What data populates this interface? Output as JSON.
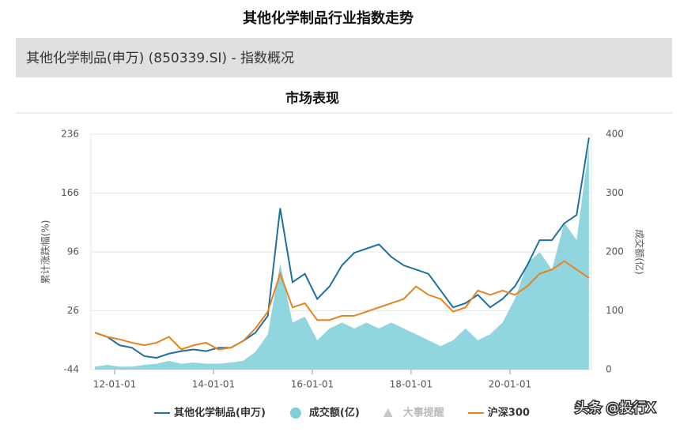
{
  "page_title": "其他化学制品行业指数走势",
  "panel_title": "其他化学制品(申万) (850339.SI) - 指数概况",
  "section_title": "市场表现",
  "watermark": "头条 @投行X",
  "chart_data": {
    "type": "line",
    "ylabel": "累计涨跌幅(%)",
    "y2label": "成交额(亿)",
    "xlim": [
      2011.52,
      2021.65
    ],
    "xticks": [
      {
        "value": 2012,
        "label": "12-01-01"
      },
      {
        "value": 2014,
        "label": "14-01-01"
      },
      {
        "value": 2016,
        "label": "16-01-01"
      },
      {
        "value": 2018,
        "label": "18-01-01"
      },
      {
        "value": 2020,
        "label": "20-01-01"
      }
    ],
    "ylim": [
      -44,
      236
    ],
    "yticks": [
      -44,
      26,
      96,
      166,
      236
    ],
    "y2lim": [
      0,
      400
    ],
    "y2ticks": [
      0,
      100,
      200,
      300,
      400
    ],
    "grid": true,
    "x": [
      2011.6,
      2011.85,
      2012.1,
      2012.35,
      2012.6,
      2012.85,
      2013.1,
      2013.35,
      2013.6,
      2013.85,
      2014.1,
      2014.35,
      2014.6,
      2014.85,
      2015.1,
      2015.35,
      2015.6,
      2015.85,
      2016.1,
      2016.35,
      2016.6,
      2016.85,
      2017.1,
      2017.35,
      2017.6,
      2017.85,
      2018.1,
      2018.35,
      2018.6,
      2018.85,
      2019.1,
      2019.35,
      2019.6,
      2019.85,
      2020.1,
      2020.35,
      2020.6,
      2020.85,
      2021.1,
      2021.35,
      2021.6
    ],
    "series": [
      {
        "name": "其他化学制品(申万)",
        "color": "#1f6fa3",
        "axis": "y",
        "kind": "line",
        "values": [
          0,
          -5,
          -15,
          -18,
          -28,
          -30,
          -25,
          -22,
          -20,
          -22,
          -18,
          -18,
          -10,
          0,
          20,
          148,
          60,
          70,
          40,
          55,
          80,
          95,
          100,
          105,
          90,
          80,
          75,
          70,
          50,
          30,
          35,
          45,
          30,
          40,
          55,
          80,
          110,
          110,
          130,
          140,
          232
        ]
      },
      {
        "name": "成交额(亿)",
        "color": "#7ecfd8",
        "axis": "y2",
        "kind": "area",
        "values": [
          5,
          8,
          5,
          5,
          8,
          10,
          15,
          10,
          12,
          10,
          10,
          12,
          15,
          30,
          60,
          180,
          80,
          90,
          50,
          70,
          80,
          70,
          80,
          70,
          80,
          70,
          60,
          50,
          40,
          50,
          70,
          50,
          60,
          80,
          120,
          180,
          200,
          170,
          250,
          220,
          380
        ]
      },
      {
        "name": "沪深300",
        "color": "#e8821e",
        "axis": "y",
        "kind": "line",
        "values": [
          0,
          -5,
          -8,
          -12,
          -15,
          -12,
          -5,
          -20,
          -15,
          -12,
          -20,
          -18,
          -10,
          5,
          25,
          70,
          30,
          35,
          15,
          15,
          20,
          20,
          25,
          30,
          35,
          40,
          55,
          45,
          40,
          25,
          30,
          50,
          45,
          50,
          45,
          55,
          70,
          75,
          85,
          75,
          65
        ]
      }
    ],
    "legend_extra": {
      "name": "大事提醒",
      "color": "#c8c8c8"
    }
  }
}
